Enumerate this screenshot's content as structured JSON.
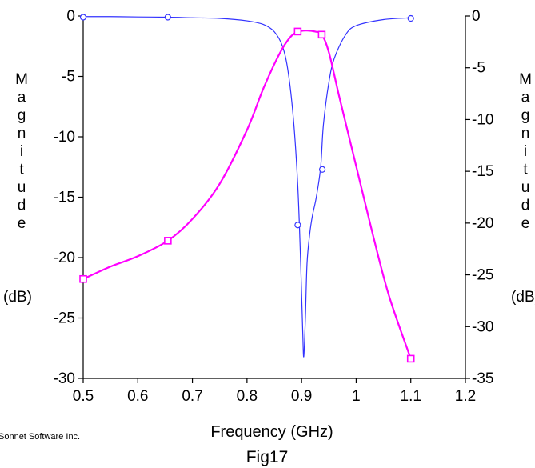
{
  "chart_data": {
    "type": "line",
    "xlabel": "Frequency (GHz)",
    "ylabel_left": "Magnitude (dB)",
    "ylabel_right": "Magnitude (dB)",
    "xlim": [
      0.5,
      1.2
    ],
    "ylim_left": [
      -30,
      0
    ],
    "ylim_right": [
      -35,
      0
    ],
    "x_ticks": [
      "0.5",
      "0.6",
      "0.7",
      "0.8",
      "0.9",
      "1",
      "1.1",
      "1.2"
    ],
    "y_ticks_left": [
      "0",
      "-5",
      "-10",
      "-15",
      "-20",
      "-25",
      "-30"
    ],
    "y_ticks_right": [
      "0",
      "-5",
      "-10",
      "-15",
      "-20",
      "-25",
      "-30",
      "-35"
    ],
    "grid": false,
    "series": [
      {
        "color": "#3333ff",
        "marker": "circle",
        "axis": "left",
        "x": [
          0.5,
          0.55,
          0.6,
          0.655,
          0.7,
          0.75,
          0.8,
          0.83,
          0.85,
          0.865,
          0.875,
          0.885,
          0.893,
          0.898,
          0.902,
          0.904,
          0.907,
          0.91,
          0.915,
          0.92,
          0.927,
          0.935,
          0.94,
          0.95,
          0.96,
          0.98,
          1.0,
          1.05,
          1.1
        ],
        "y": [
          -0.05,
          -0.05,
          -0.08,
          -0.1,
          -0.15,
          -0.2,
          -0.4,
          -0.7,
          -1.3,
          -2.5,
          -4.5,
          -8.5,
          -14.0,
          -20.0,
          -26.0,
          -28.2,
          -25.0,
          -20.5,
          -18.0,
          -16.5,
          -15.0,
          -12.5,
          -9.0,
          -5.5,
          -3.5,
          -1.6,
          -0.8,
          -0.3,
          -0.15
        ],
        "marker_x": [
          0.5,
          0.655,
          0.893,
          0.938,
          1.1
        ],
        "marker_y": [
          -0.1,
          -0.1,
          -17.3,
          -12.7,
          -0.2
        ]
      },
      {
        "color": "#ff00ff",
        "marker": "square",
        "axis": "right",
        "x": [
          0.5,
          0.55,
          0.6,
          0.655,
          0.7,
          0.75,
          0.8,
          0.83,
          0.86,
          0.88,
          0.895,
          0.91,
          0.925,
          0.937,
          0.95,
          0.97,
          1.0,
          1.03,
          1.06,
          1.1
        ],
        "y": [
          -25.4,
          -24.2,
          -23.2,
          -21.7,
          -19.6,
          -16.2,
          -11.0,
          -7.0,
          -3.6,
          -2.0,
          -1.5,
          -1.4,
          -1.5,
          -1.8,
          -3.5,
          -8.0,
          -14.5,
          -21.0,
          -27.0,
          -33.1
        ],
        "marker_x": [
          0.5,
          0.655,
          0.893,
          0.937,
          1.1
        ],
        "marker_y": [
          -25.4,
          -21.7,
          -1.5,
          -1.8,
          -33.1
        ]
      }
    ]
  },
  "credit": "Sonnet Software Inc.",
  "caption": "Fig17"
}
